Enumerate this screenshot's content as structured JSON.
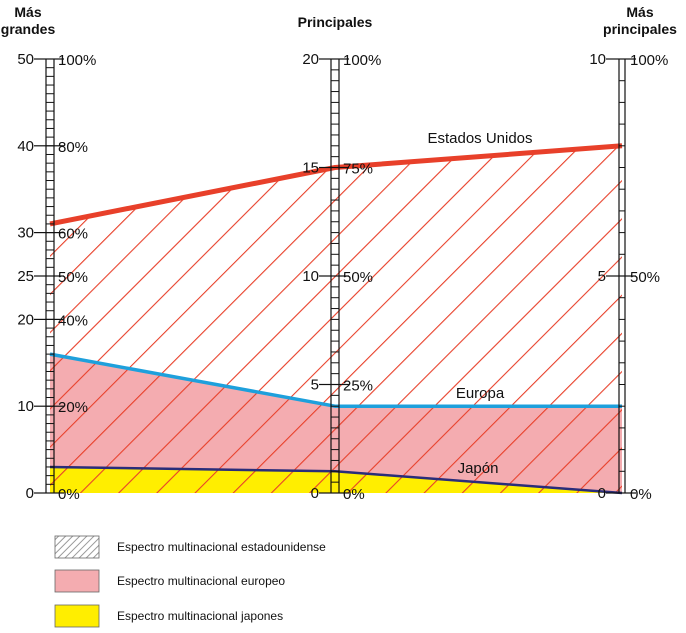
{
  "chart_data": {
    "type": "area",
    "title": "",
    "axes": [
      {
        "name": "left",
        "header": [
          "Más",
          "grandes"
        ],
        "count_ticks": [
          "50",
          "40",
          "30",
          "25",
          "20",
          "10",
          "0"
        ],
        "count_values": [
          50,
          40,
          30,
          25,
          20,
          10,
          0
        ],
        "percent_ticks": [
          "100%",
          "80%",
          "60%",
          "50%",
          "40%",
          "20%",
          "0%"
        ],
        "percent_values": [
          100,
          80,
          60,
          50,
          40,
          20,
          0
        ],
        "range": [
          0,
          50
        ]
      },
      {
        "name": "middle",
        "header": [
          "Principales"
        ],
        "count_ticks": [
          "20",
          "15",
          "10",
          "5",
          "0"
        ],
        "count_values": [
          20,
          15,
          10,
          5,
          0
        ],
        "percent_ticks": [
          "100%",
          "75%",
          "50%",
          "25%",
          "0%"
        ],
        "percent_values": [
          100,
          75,
          50,
          25,
          0
        ],
        "range": [
          0,
          20
        ]
      },
      {
        "name": "right",
        "header": [
          "Más",
          "principales"
        ],
        "count_ticks": [
          "10",
          "5",
          "0"
        ],
        "count_values": [
          10,
          5,
          0
        ],
        "percent_ticks": [
          "100%",
          "50%",
          "0%"
        ],
        "percent_values": [
          100,
          50,
          0
        ],
        "range": [
          0,
          10
        ]
      }
    ],
    "series": [
      {
        "name": "Estados Unidos",
        "color": "#e8402a",
        "percent": [
          62,
          75,
          80
        ]
      },
      {
        "name": "Europa",
        "color": "#1ea0dc",
        "percent": [
          32,
          20,
          20
        ]
      },
      {
        "name": "Japón",
        "color": "#2a2d7a",
        "percent": [
          6,
          5,
          0
        ]
      }
    ],
    "fills": {
      "us": "#e8402a",
      "europe": "#f4acb0",
      "japan": "#ffee00"
    },
    "legend": [
      {
        "label": "Espectro multinacional estadounidense",
        "kind": "hatch"
      },
      {
        "label": "Espectro multinacional europeo",
        "kind": "pink"
      },
      {
        "label": "Espectro multinacional japones",
        "kind": "yellow"
      }
    ],
    "legend_position": "bottom"
  }
}
